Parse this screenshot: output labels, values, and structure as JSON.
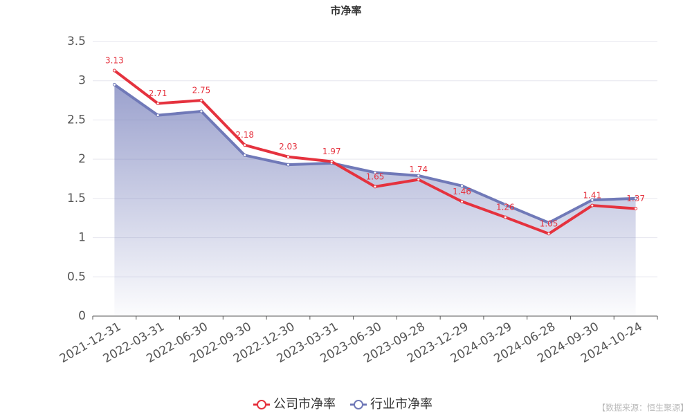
{
  "chart_data": {
    "type": "line",
    "title": "市净率",
    "categories": [
      "2021-12-31",
      "2022-03-31",
      "2022-06-30",
      "2022-09-30",
      "2022-12-30",
      "2023-03-31",
      "2023-06-30",
      "2023-09-28",
      "2023-12-29",
      "2024-03-29",
      "2024-06-28",
      "2024-09-30",
      "2024-10-24"
    ],
    "series": [
      {
        "name": "公司市净率",
        "color": "#e5323e",
        "values": [
          3.13,
          2.71,
          2.75,
          2.18,
          2.03,
          1.97,
          1.65,
          1.74,
          1.46,
          1.26,
          1.05,
          1.41,
          1.37
        ],
        "data_labels": true
      },
      {
        "name": "行业市净率",
        "color": "#7079b8",
        "values": [
          2.95,
          2.56,
          2.61,
          2.05,
          1.93,
          1.95,
          1.83,
          1.79,
          1.66,
          1.42,
          1.19,
          1.48,
          1.5
        ],
        "area": true
      }
    ],
    "ylim": [
      0,
      3.5
    ],
    "yticks": [
      0,
      0.5,
      1,
      1.5,
      2,
      2.5,
      3,
      3.5
    ],
    "grid": true,
    "legend": "bottom",
    "source": "【数据来源：恒生聚源】"
  }
}
